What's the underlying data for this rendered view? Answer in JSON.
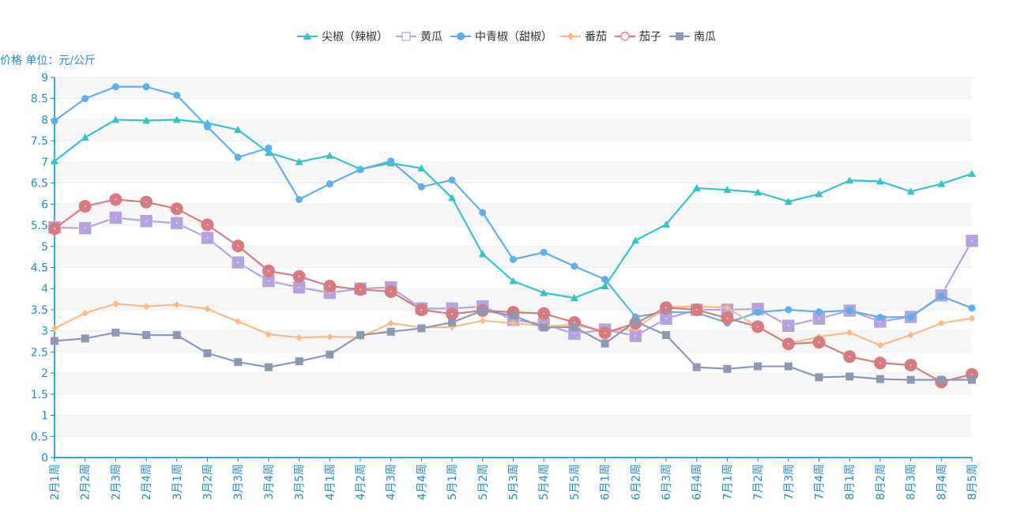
{
  "chart_data": {
    "type": "line",
    "title": "",
    "ylabel": "价格 单位：元/公斤",
    "xlabel": "",
    "ylim": [
      0,
      9
    ],
    "yticks": [
      0,
      0.5,
      1,
      1.5,
      2,
      2.5,
      3,
      3.5,
      4,
      4.5,
      5,
      5.5,
      6,
      6.5,
      7,
      7.5,
      8,
      8.5,
      9
    ],
    "ytick_labels": [
      "0",
      "0.5",
      "1",
      "1.5",
      "2",
      "2.5",
      "3",
      "3.5",
      "4",
      "4.5",
      "5",
      "5.5",
      "6",
      "6.5",
      "7",
      "7.5",
      "8",
      "8.5",
      "9"
    ],
    "grid": true,
    "legend_position": "top-center",
    "categories": [
      "2月1周",
      "2月2周",
      "2月3周",
      "2月4周",
      "3月1周",
      "3月2周",
      "3月3周",
      "3月4周",
      "3月5周",
      "4月1周",
      "4月2周",
      "4月3周",
      "4月4周",
      "5月1周",
      "5月2周",
      "5月3周",
      "5月4周",
      "5月5周",
      "6月1周",
      "6月2周",
      "6月3周",
      "6月4周",
      "7月1周",
      "7月2周",
      "7月3周",
      "7月4周",
      "8月1周",
      "8月2周",
      "8月3周",
      "8月4周",
      "8月5周"
    ],
    "series": [
      {
        "name": "尖椒（辣椒）",
        "color": "#2ec7c9",
        "marker": "triangle",
        "values": [
          7.02,
          7.58,
          8.0,
          7.98,
          8.0,
          7.92,
          7.76,
          7.22,
          7.0,
          7.15,
          6.83,
          6.97,
          6.85,
          6.15,
          4.82,
          4.18,
          3.9,
          3.78,
          4.06,
          5.14,
          5.52,
          6.38,
          6.34,
          6.28,
          6.06,
          6.24,
          6.56,
          6.54,
          6.3,
          6.48,
          6.72
        ]
      },
      {
        "name": "黄瓜",
        "color": "#b6a2de",
        "marker": "square-hollow",
        "values": [
          5.45,
          5.43,
          5.68,
          5.6,
          5.55,
          5.2,
          4.62,
          4.18,
          4.03,
          3.9,
          4.0,
          4.03,
          3.53,
          3.53,
          3.58,
          3.26,
          3.16,
          2.93,
          3.03,
          2.88,
          3.29,
          3.5,
          3.5,
          3.52,
          3.12,
          3.29,
          3.48,
          3.22,
          3.33,
          3.84,
          5.13
        ]
      },
      {
        "name": "中青椒（甜椒）",
        "color": "#5ab1ef",
        "marker": "circle",
        "values": [
          7.97,
          8.5,
          8.78,
          8.78,
          8.58,
          7.83,
          7.11,
          7.33,
          6.11,
          6.48,
          6.82,
          7.02,
          6.41,
          6.57,
          5.8,
          4.69,
          4.86,
          4.53,
          4.22,
          3.33,
          3.45,
          3.43,
          3.19,
          3.44,
          3.5,
          3.45,
          3.48,
          3.32,
          3.33,
          3.82,
          3.54
        ]
      },
      {
        "name": "番茄",
        "color": "#ffb980",
        "marker": "diamond",
        "values": [
          3.06,
          3.42,
          3.64,
          3.58,
          3.62,
          3.52,
          3.22,
          2.92,
          2.84,
          2.86,
          2.85,
          3.18,
          3.08,
          3.09,
          3.24,
          3.18,
          3.12,
          3.14,
          3.0,
          3.05,
          3.56,
          3.58,
          3.55,
          3.09,
          2.7,
          2.86,
          2.96,
          2.66,
          2.9,
          3.18,
          3.3
        ]
      },
      {
        "name": "茄子",
        "color": "#d87a80",
        "marker": "circle-hollow",
        "values": [
          5.42,
          5.95,
          6.11,
          6.05,
          5.89,
          5.51,
          5.01,
          4.42,
          4.29,
          4.06,
          3.98,
          3.93,
          3.5,
          3.4,
          3.48,
          3.44,
          3.41,
          3.2,
          2.95,
          3.18,
          3.55,
          3.5,
          3.3,
          3.1,
          2.69,
          2.73,
          2.39,
          2.24,
          2.19,
          1.79,
          1.97
        ]
      },
      {
        "name": "南瓜",
        "color": "#8d98b3",
        "marker": "square",
        "values": [
          2.76,
          2.82,
          2.96,
          2.9,
          2.9,
          2.47,
          2.26,
          2.14,
          2.28,
          2.44,
          2.9,
          2.98,
          3.06,
          3.2,
          3.48,
          3.36,
          3.08,
          3.09,
          2.7,
          3.22,
          2.9,
          2.14,
          2.1,
          2.16,
          2.16,
          1.9,
          1.92,
          1.86,
          1.84,
          1.84,
          1.84
        ]
      }
    ]
  }
}
